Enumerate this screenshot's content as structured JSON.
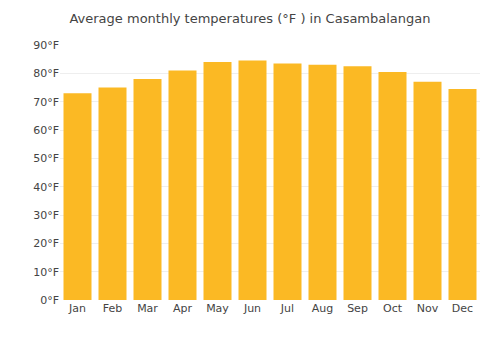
{
  "chart_data": {
    "type": "bar",
    "title": "Average monthly temperatures (°F ) in Casambalangan",
    "categories": [
      "Jan",
      "Feb",
      "Mar",
      "Apr",
      "May",
      "Jun",
      "Jul",
      "Aug",
      "Sep",
      "Oct",
      "Nov",
      "Dec"
    ],
    "values": [
      73,
      75,
      78,
      81,
      84,
      84.5,
      83.5,
      83,
      82.5,
      80.5,
      77,
      74.5
    ],
    "color": "#FBB924",
    "ylim": [
      0,
      90
    ],
    "yticks": [
      {
        "value": 0,
        "label": "0°F"
      },
      {
        "value": 10,
        "label": "10°F"
      },
      {
        "value": 20,
        "label": "20°F"
      },
      {
        "value": 30,
        "label": "30°F"
      },
      {
        "value": 40,
        "label": "40°F"
      },
      {
        "value": 50,
        "label": "50°F"
      },
      {
        "value": 60,
        "label": "60°F"
      },
      {
        "value": 70,
        "label": "70°F"
      },
      {
        "value": 80,
        "label": "80°F"
      },
      {
        "value": 90,
        "label": "90°F"
      }
    ],
    "grid": true
  }
}
